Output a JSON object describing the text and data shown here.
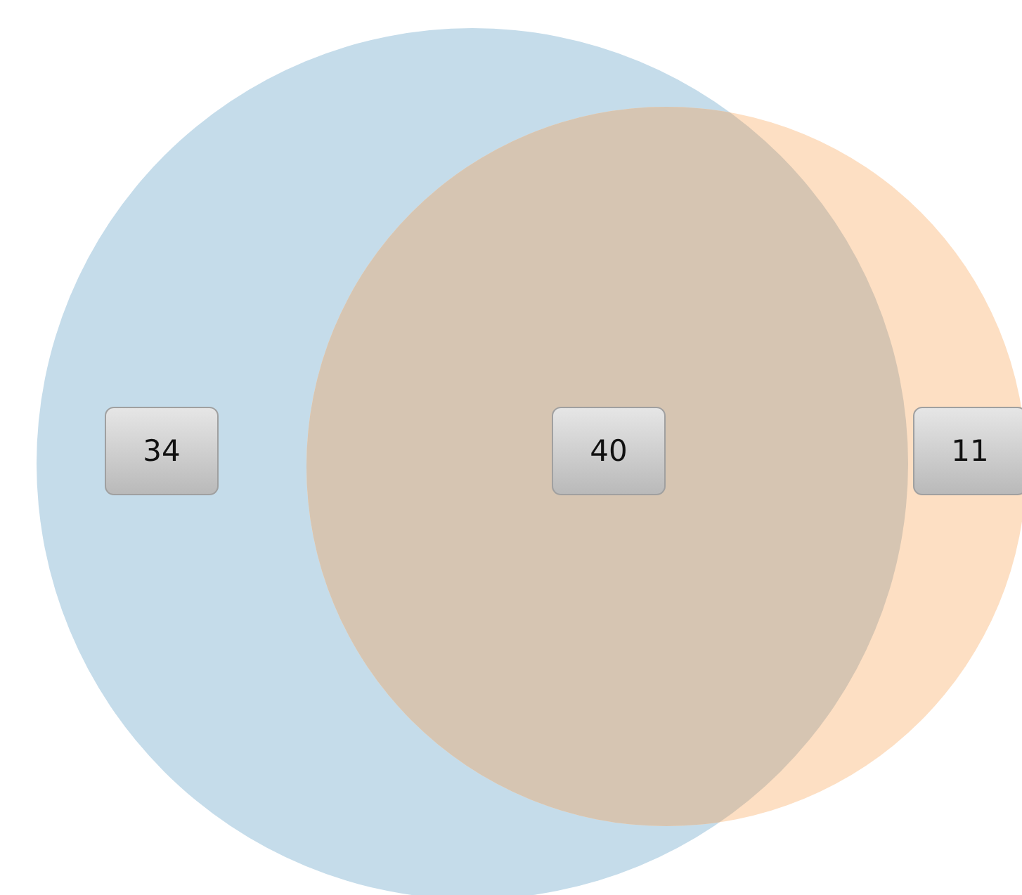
{
  "chart_data": {
    "type": "other",
    "categories": [
      null,
      null,
      null
    ],
    "values": [
      34,
      40,
      11
    ],
    "colors": [
      "#c5dcea",
      "#d6c5b2",
      "#fddfc3"
    ],
    "data_labels": true
  }
}
